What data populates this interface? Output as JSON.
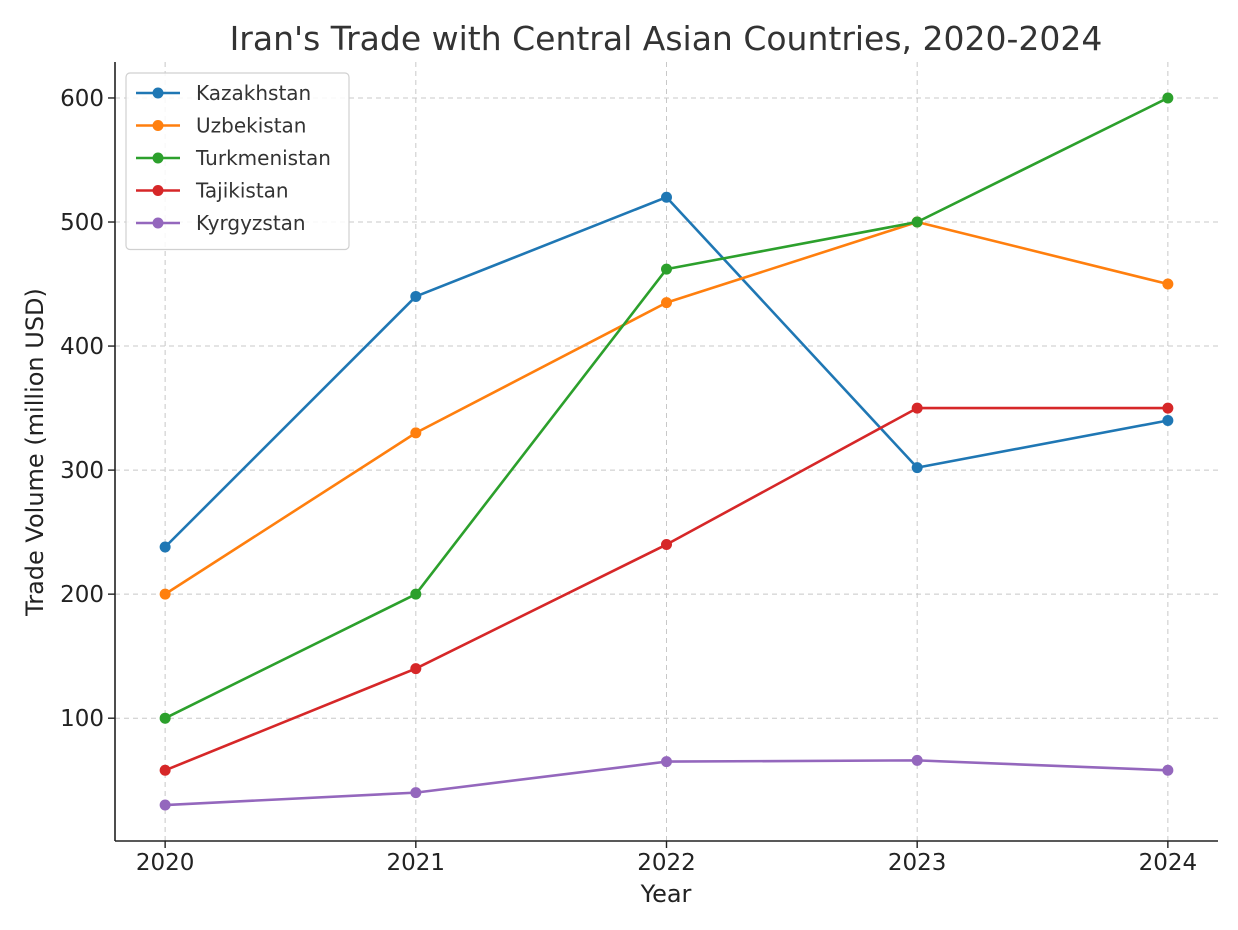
{
  "chart_data": {
    "type": "line",
    "title": "Iran's Trade with Central Asian Countries, 2020-2024",
    "xlabel": "Year",
    "ylabel": "Trade Volume (million USD)",
    "x": [
      2020,
      2021,
      2022,
      2023,
      2024
    ],
    "x_tick_labels": [
      "2020",
      "2021",
      "2022",
      "2023",
      "2024"
    ],
    "y_ticks": [
      100,
      200,
      300,
      400,
      500,
      600
    ],
    "y_tick_labels": [
      "100",
      "200",
      "300",
      "400",
      "500",
      "600"
    ],
    "xlim": [
      2019.8,
      2024.2
    ],
    "ylim": [
      1,
      629
    ],
    "grid": true,
    "legend_position": "top-left",
    "series": [
      {
        "name": "Kazakhstan",
        "color": "#1f77b4",
        "values": [
          238,
          440,
          520,
          302,
          340
        ]
      },
      {
        "name": "Uzbekistan",
        "color": "#ff7f0e",
        "values": [
          200,
          330,
          435,
          500,
          450
        ]
      },
      {
        "name": "Turkmenistan",
        "color": "#2ca02c",
        "values": [
          100,
          200,
          462,
          500,
          600
        ]
      },
      {
        "name": "Tajikistan",
        "color": "#d62728",
        "values": [
          58,
          140,
          240,
          350,
          350
        ]
      },
      {
        "name": "Kyrgyzstan",
        "color": "#9467bd",
        "values": [
          30,
          40,
          65,
          66,
          58
        ]
      }
    ]
  }
}
